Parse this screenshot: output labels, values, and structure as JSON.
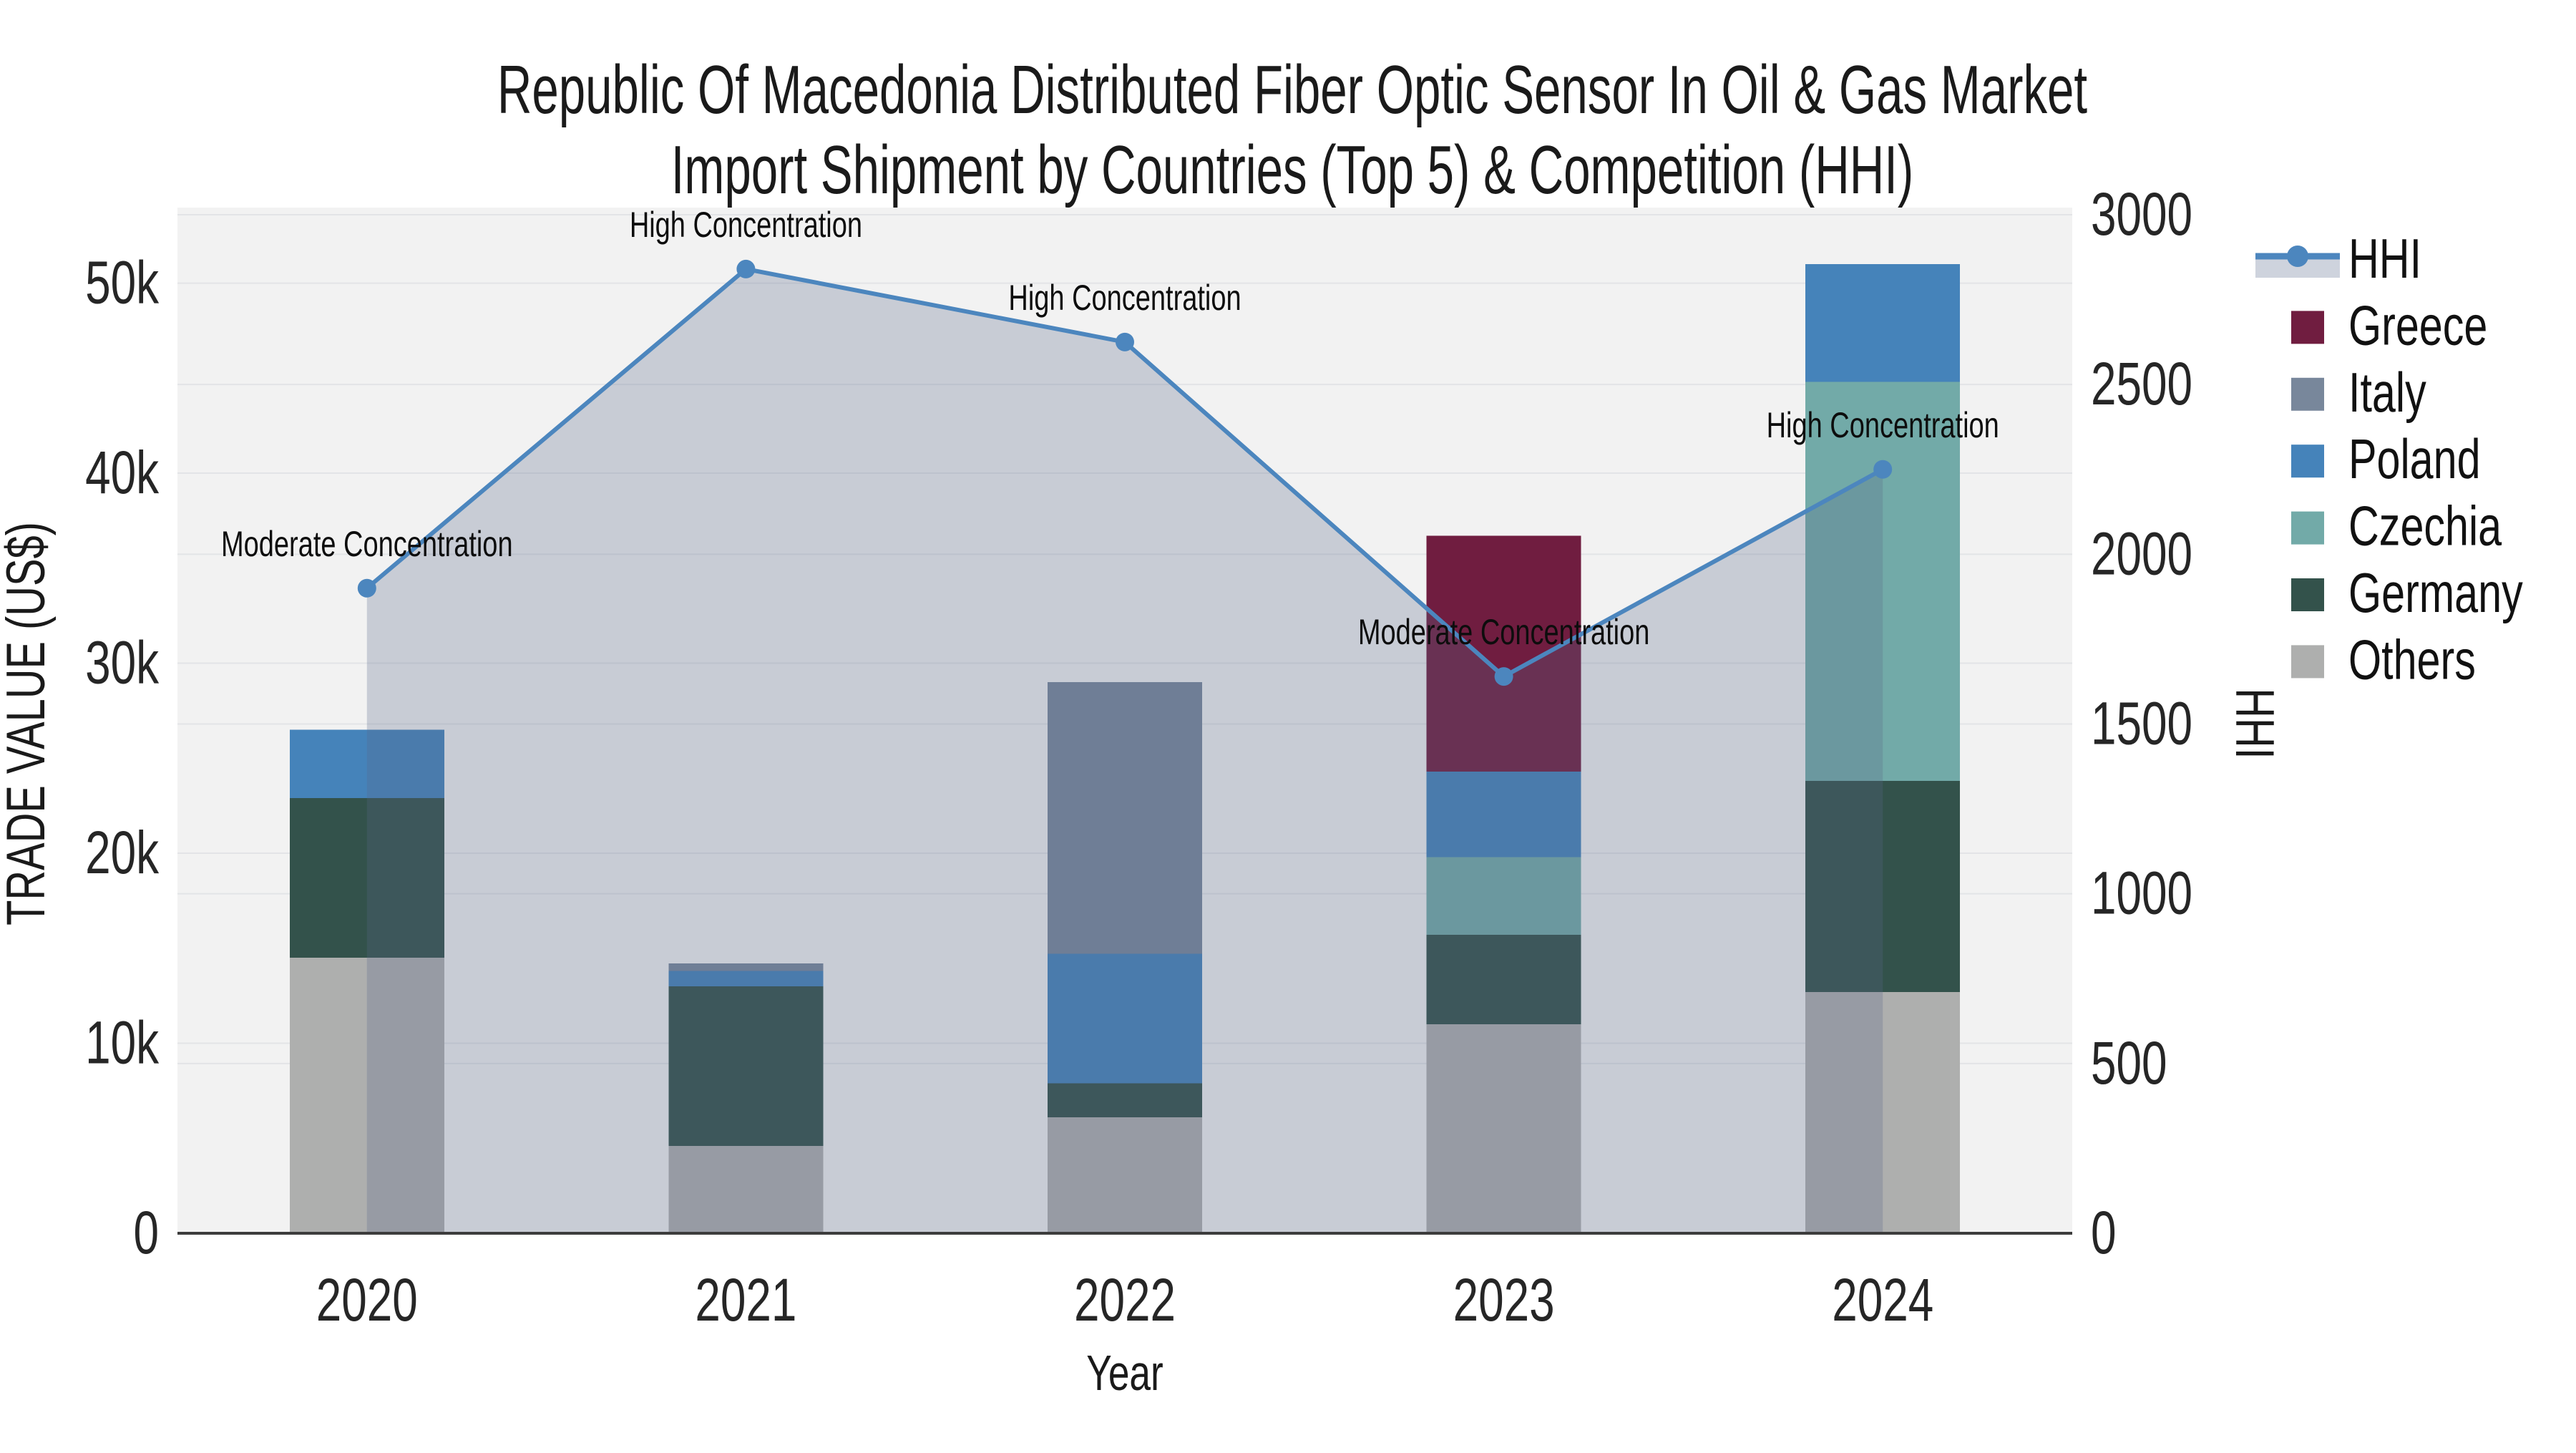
{
  "title": {
    "line1": "Republic Of Macedonia Distributed Fiber Optic Sensor In Oil & Gas Market",
    "line2": "Import Shipment by Countries (Top 5) & Competition (HHI)"
  },
  "legend": {
    "items": [
      {
        "label": "HHI",
        "type": "line",
        "color": "#4C86BE",
        "band": "#CED3DD"
      },
      {
        "label": "Greece",
        "type": "swatch",
        "color": "#701D40"
      },
      {
        "label": "Italy",
        "type": "swatch",
        "color": "#78879B"
      },
      {
        "label": "Poland",
        "type": "swatch",
        "color": "#4583BA"
      },
      {
        "label": "Czechia",
        "type": "swatch",
        "color": "#72AAA8"
      },
      {
        "label": "Germany",
        "type": "swatch",
        "color": "#33524B"
      },
      {
        "label": "Others",
        "type": "swatch",
        "color": "#AEAFAE"
      }
    ]
  },
  "chart_data": {
    "type": "bar+line",
    "subtype": "stacked bars (left axis) with HHI line+area (right axis)",
    "categories": [
      "2020",
      "2021",
      "2022",
      "2023",
      "2024"
    ],
    "x_label": "Year",
    "y_left": {
      "label": "TRADE VALUE (US$)",
      "ticks": [
        "0",
        "10k",
        "20k",
        "30k",
        "40k",
        "50k"
      ],
      "tick_values": [
        0,
        10000,
        20000,
        30000,
        40000,
        50000
      ],
      "max": 53600
    },
    "y_right": {
      "label": "HHI",
      "ticks": [
        "0",
        "500",
        "1000",
        "1500",
        "2000",
        "2500",
        "3000"
      ],
      "tick_values": [
        0,
        500,
        1000,
        1500,
        2000,
        2500,
        3000
      ],
      "max": 3000
    },
    "stack_order_bottom_to_top": [
      "Others",
      "Germany",
      "Czechia",
      "Poland",
      "Italy",
      "Greece"
    ],
    "series": [
      {
        "name": "Greece",
        "color": "#701D40",
        "values": [
          0,
          0,
          0,
          12400,
          0
        ]
      },
      {
        "name": "Italy",
        "color": "#78879B",
        "values": [
          0,
          400,
          14300,
          0,
          0
        ]
      },
      {
        "name": "Poland",
        "color": "#4583BA",
        "values": [
          3600,
          800,
          6800,
          4500,
          6200
        ]
      },
      {
        "name": "Czechia",
        "color": "#72AAA8",
        "values": [
          0,
          0,
          0,
          4100,
          21000
        ]
      },
      {
        "name": "Germany",
        "color": "#33524B",
        "values": [
          8400,
          8400,
          1800,
          4700,
          11100
        ]
      },
      {
        "name": "Others",
        "color": "#AEAFAE",
        "values": [
          14500,
          4600,
          6100,
          11000,
          12700
        ]
      }
    ],
    "bar_totals": [
      26500,
      14200,
      29000,
      36700,
      51000
    ],
    "line_series": {
      "name": "HHI",
      "color": "#4C86BE",
      "area_fill": "rgba(90,105,135,0.27)",
      "values": [
        1900,
        2840,
        2625,
        1640,
        2250
      ]
    },
    "annotations": [
      {
        "year": "2020",
        "label": "Moderate Concentration"
      },
      {
        "year": "2021",
        "label": "High Concentration"
      },
      {
        "year": "2022",
        "label": "High Concentration"
      },
      {
        "year": "2023",
        "label": "Moderate Concentration"
      },
      {
        "year": "2024",
        "label": "High Concentration"
      }
    ],
    "grid": true,
    "plot_bg": "#F2F2F2",
    "grid_color": "#E3E4E7",
    "axis_line_color": "#3C3C3C",
    "text_color": "#262626",
    "legend_position": "right"
  }
}
